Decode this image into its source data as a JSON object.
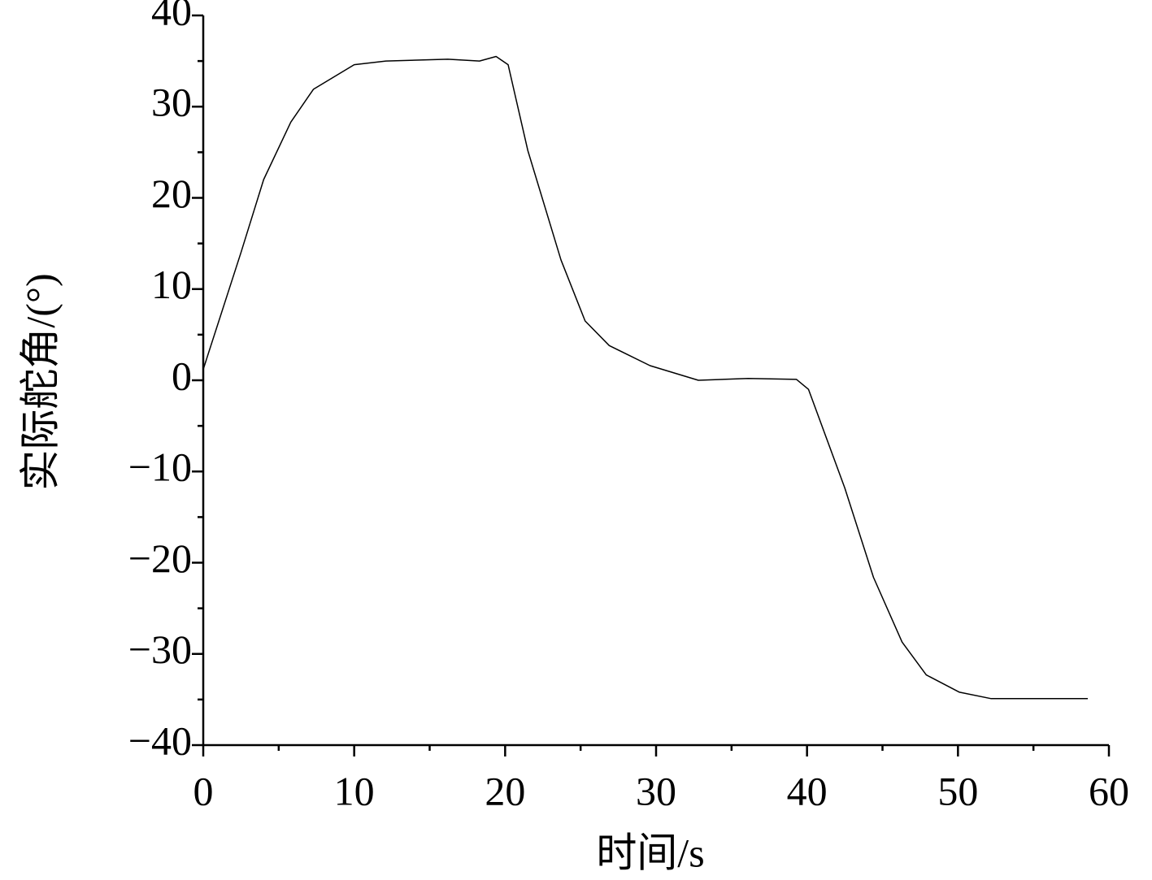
{
  "chart_data": {
    "type": "line",
    "xlabel": "时间/s",
    "ylabel": "实际舵角/(°)",
    "x": [
      0,
      2.5,
      4.0,
      5.8,
      7.3,
      10,
      12.1,
      16.2,
      18.3,
      19.4,
      20.2,
      21.5,
      23.7,
      25.3,
      26.9,
      29.6,
      32.8,
      36.1,
      39.3,
      40.1,
      42.5,
      44.4,
      46.3,
      47.9,
      50.1,
      52.2,
      58.6
    ],
    "series": [
      {
        "color": "#000000",
        "values": [
          1.2,
          14,
          22,
          28.3,
          31.9,
          34.6,
          35,
          35.2,
          35,
          35.5,
          34.6,
          25.2,
          13.2,
          6.5,
          3.8,
          1.6,
          0,
          0.2,
          0.1,
          -1,
          -11.8,
          -21.6,
          -28.7,
          -32.3,
          -34.2,
          -34.9,
          -34.9
        ]
      }
    ],
    "xlim": [
      0,
      60
    ],
    "xticks": [
      0,
      10,
      20,
      30,
      40,
      50,
      60
    ],
    "ylim": [
      -40,
      40
    ],
    "yticks": [
      {
        "value": -40,
        "label": "−40"
      },
      {
        "value": -30,
        "label": "−30"
      },
      {
        "value": -20,
        "label": "−20"
      },
      {
        "value": -10,
        "label": "−10"
      },
      0,
      10,
      20,
      30,
      40
    ],
    "grid": false
  }
}
